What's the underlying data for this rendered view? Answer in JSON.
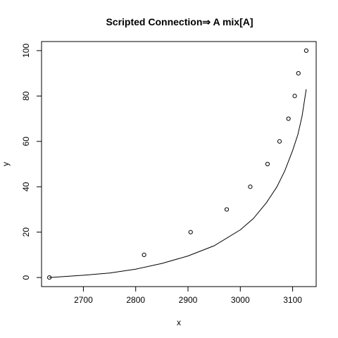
{
  "chart_data": {
    "type": "scatter",
    "title": "Scripted Connection⇒ A mix[A]",
    "xlabel": "x",
    "ylabel": "y",
    "xlim": [
      2620,
      3145
    ],
    "ylim": [
      -4,
      104
    ],
    "xticks": [
      2700,
      2800,
      2900,
      3000,
      3100
    ],
    "yticks": [
      0,
      20,
      40,
      60,
      80,
      100
    ],
    "grid": false,
    "legend": "none",
    "series": [
      {
        "type": "points",
        "x": [
          2635,
          2816,
          2905,
          2974,
          3019,
          3052,
          3075,
          3092,
          3104,
          3111,
          3126
        ],
        "y": [
          0,
          10,
          20,
          30,
          40,
          50,
          60,
          70,
          80,
          90,
          100
        ]
      },
      {
        "type": "line",
        "x": [
          2635,
          2700,
          2750,
          2800,
          2850,
          2900,
          2950,
          3000,
          3025,
          3050,
          3070,
          3085,
          3100,
          3110,
          3118,
          3126
        ],
        "y": [
          0,
          1,
          2,
          3.7,
          6.2,
          9.5,
          14,
          21,
          26,
          33,
          40,
          47,
          56,
          63,
          71,
          83
        ]
      }
    ]
  }
}
